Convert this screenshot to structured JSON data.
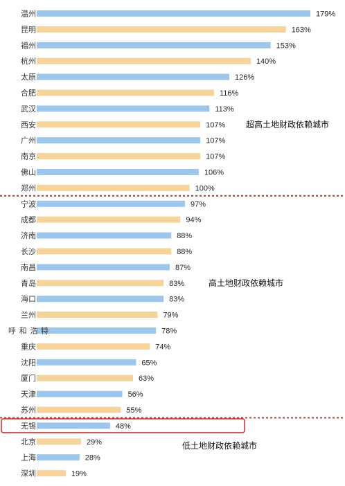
{
  "chart_data": {
    "type": "bar",
    "orientation": "horizontal",
    "categories": [
      "温州",
      "昆明",
      "福州",
      "杭州",
      "太原",
      "合肥",
      "武汉",
      "西安",
      "广州",
      "南京",
      "佛山",
      "郑州",
      "宁波",
      "成都",
      "济南",
      "长沙",
      "南昌",
      "青岛",
      "海口",
      "兰州",
      "呼和浩特",
      "重庆",
      "沈阳",
      "厦门",
      "天津",
      "苏州",
      "无锡",
      "北京",
      "上海",
      "深圳"
    ],
    "values": [
      179,
      163,
      153,
      140,
      126,
      116,
      113,
      107,
      107,
      107,
      106,
      100,
      97,
      94,
      88,
      88,
      87,
      83,
      83,
      79,
      78,
      74,
      65,
      63,
      56,
      55,
      48,
      29,
      28,
      19
    ],
    "value_labels": [
      "179%",
      "163%",
      "153%",
      "140%",
      "126%",
      "116%",
      "113%",
      "107%",
      "107%",
      "107%",
      "106%",
      "100%",
      "97%",
      "94%",
      "88%",
      "88%",
      "87%",
      "83%",
      "83%",
      "79%",
      "78%",
      "74%",
      "65%",
      "63%",
      "56%",
      "55%",
      "48%",
      "29%",
      "28%",
      "19%"
    ],
    "unit": "%",
    "xlim": [
      0,
      179
    ],
    "colors": {
      "blue": "#9cc7ec",
      "orange": "#f6d398",
      "divider": "#a5524a",
      "highlight": "#e03030"
    },
    "bar_colors": [
      "blue",
      "orange",
      "blue",
      "orange",
      "blue",
      "orange",
      "blue",
      "orange",
      "blue",
      "orange",
      "blue",
      "orange",
      "blue",
      "orange",
      "blue",
      "orange",
      "blue",
      "orange",
      "blue",
      "orange",
      "blue",
      "orange",
      "blue",
      "orange",
      "blue",
      "orange",
      "blue",
      "orange",
      "blue",
      "orange"
    ],
    "groups": [
      {
        "label": "超高土地财政依赖城市",
        "first": 0,
        "last": 11
      },
      {
        "label": "高土地财政依赖城市",
        "first": 12,
        "last": 25
      },
      {
        "label": "低土地财政依赖城市",
        "first": 26,
        "last": 29
      }
    ],
    "highlight_index": 26,
    "grid": false
  }
}
